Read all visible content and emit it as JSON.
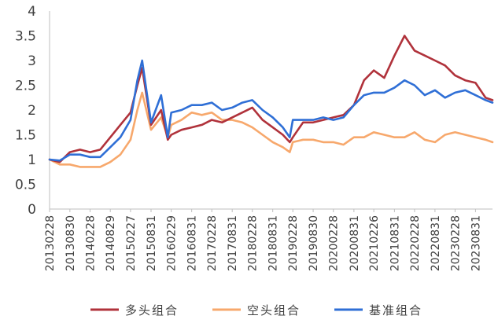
{
  "chart_data": {
    "type": "line",
    "title": "",
    "xlabel": "",
    "ylabel": "",
    "ylim": [
      0,
      4
    ],
    "y_ticks": [
      "0",
      "0.5",
      "1",
      "1.5",
      "2",
      "2.5",
      "3",
      "3.5",
      "4"
    ],
    "x_tick_labels": [
      "20130228",
      "20130830",
      "20140228",
      "20140829",
      "20150227",
      "20150831",
      "20160229",
      "20160831",
      "20170228",
      "20170831",
      "20180228",
      "20180831",
      "20190228",
      "20190830",
      "20200228",
      "20200831",
      "20210226",
      "20210831",
      "20220228",
      "20220831",
      "20230228",
      "20230831"
    ],
    "grid": false,
    "legend_position": "bottom",
    "x_dates": [
      "2013-02-28",
      "2013-05-31",
      "2013-08-30",
      "2013-11-29",
      "2014-02-28",
      "2014-05-30",
      "2014-08-29",
      "2014-11-28",
      "2015-02-27",
      "2015-04-30",
      "2015-06-12",
      "2015-08-31",
      "2015-11-30",
      "2016-01-29",
      "2016-02-29",
      "2016-05-31",
      "2016-08-31",
      "2016-11-30",
      "2017-02-28",
      "2017-05-31",
      "2017-08-31",
      "2017-11-30",
      "2018-02-28",
      "2018-05-31",
      "2018-08-31",
      "2018-11-30",
      "2019-01-31",
      "2019-02-28",
      "2019-05-31",
      "2019-08-30",
      "2019-11-29",
      "2020-02-28",
      "2020-05-29",
      "2020-08-31",
      "2020-11-30",
      "2021-02-26",
      "2021-05-31",
      "2021-08-31",
      "2021-11-30",
      "2022-02-28",
      "2022-05-31",
      "2022-08-31",
      "2022-11-30",
      "2023-02-28",
      "2023-05-31",
      "2023-08-31",
      "2023-11-30",
      "2024-01-31"
    ],
    "series": [
      {
        "name": "多头组合",
        "color": "#b0323b",
        "values": [
          1.0,
          0.95,
          1.15,
          1.2,
          1.15,
          1.2,
          1.45,
          1.7,
          1.95,
          2.5,
          2.85,
          1.7,
          2.0,
          1.4,
          1.5,
          1.6,
          1.65,
          1.7,
          1.8,
          1.75,
          1.85,
          1.95,
          2.05,
          1.8,
          1.65,
          1.5,
          1.35,
          1.45,
          1.75,
          1.75,
          1.8,
          1.85,
          1.9,
          2.1,
          2.6,
          2.8,
          2.65,
          3.1,
          3.5,
          3.2,
          3.1,
          3.0,
          2.9,
          2.7,
          2.6,
          2.55,
          2.25,
          2.2
        ]
      },
      {
        "name": "空头组合",
        "color": "#f7a86c",
        "values": [
          1.0,
          0.9,
          0.9,
          0.85,
          0.85,
          0.85,
          0.95,
          1.1,
          1.4,
          2.0,
          2.35,
          1.6,
          1.85,
          1.45,
          1.7,
          1.8,
          1.95,
          1.9,
          1.95,
          1.8,
          1.8,
          1.75,
          1.65,
          1.5,
          1.35,
          1.25,
          1.15,
          1.35,
          1.4,
          1.4,
          1.35,
          1.35,
          1.3,
          1.45,
          1.45,
          1.55,
          1.5,
          1.45,
          1.45,
          1.55,
          1.4,
          1.35,
          1.5,
          1.55,
          1.5,
          1.45,
          1.4,
          1.35
        ]
      },
      {
        "name": "基准组合",
        "color": "#2f6fd6",
        "values": [
          1.0,
          0.98,
          1.1,
          1.1,
          1.05,
          1.05,
          1.25,
          1.45,
          1.8,
          2.6,
          3.0,
          1.75,
          2.3,
          1.45,
          1.95,
          2.0,
          2.1,
          2.1,
          2.15,
          2.0,
          2.05,
          2.15,
          2.2,
          2.0,
          1.85,
          1.65,
          1.45,
          1.8,
          1.8,
          1.8,
          1.85,
          1.8,
          1.85,
          2.1,
          2.3,
          2.35,
          2.35,
          2.45,
          2.6,
          2.5,
          2.3,
          2.4,
          2.25,
          2.35,
          2.4,
          2.3,
          2.2,
          2.15
        ]
      }
    ]
  }
}
